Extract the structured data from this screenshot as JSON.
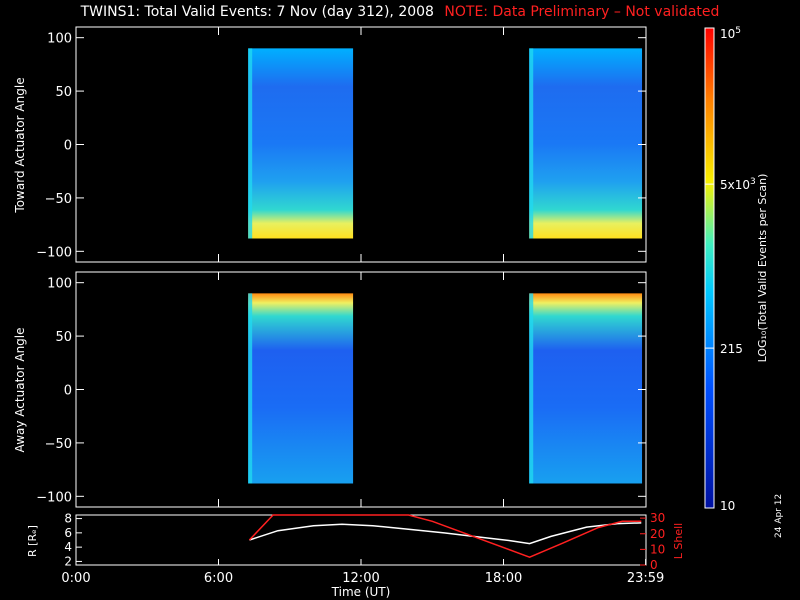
{
  "title": {
    "main": "TWINS1: Total Valid Events:  7 Nov (day 312), 2008",
    "note": "NOTE: Data Preliminary – Not validated"
  },
  "datestamp": "24 Apr 12",
  "colors": {
    "note": "#ff2020",
    "r_line": "#ffffff",
    "lshell_line": "#ff2020"
  },
  "chart_data": [
    {
      "type": "heatmap",
      "panel": "toward",
      "ylabel": "Toward Actuator Angle",
      "ylim": [
        -110,
        110
      ],
      "yticks": [
        100,
        50,
        0,
        -50,
        -100
      ],
      "xlim_hours": [
        0,
        24
      ],
      "data_blocks": [
        {
          "x_start": "07:15",
          "x_end": "11:40",
          "y_range": [
            -88,
            90
          ]
        },
        {
          "x_start": "19:05",
          "x_end": "23:50",
          "y_range": [
            -88,
            90
          ]
        }
      ]
    },
    {
      "type": "heatmap",
      "panel": "away",
      "ylabel": "Away Actuator Angle",
      "ylim": [
        -110,
        110
      ],
      "yticks": [
        100,
        50,
        0,
        -50,
        -100
      ],
      "xlim_hours": [
        0,
        24
      ],
      "data_blocks": [
        {
          "x_start": "07:15",
          "x_end": "11:40",
          "y_range": [
            -88,
            90
          ]
        },
        {
          "x_start": "19:05",
          "x_end": "23:50",
          "y_range": [
            -88,
            90
          ]
        }
      ]
    },
    {
      "type": "line",
      "panel": "orbit",
      "ylabel_left": "R [Rₑ]",
      "ylabel_right": "L Shell",
      "left_ticks": [
        "8",
        "6",
        "4",
        "2"
      ],
      "right_ticks": [
        "30",
        "20",
        "10",
        "0"
      ],
      "ylim_left": [
        1.5,
        8.5
      ],
      "ylim_right": [
        0,
        32
      ],
      "xlabel": "Time (UT)",
      "xticks": [
        "0:00",
        "6:00",
        "12:00",
        "18:00",
        "23:59"
      ],
      "series": [
        {
          "axis": "left",
          "x_hours": [
            7.3,
            8.5,
            10.0,
            11.2,
            12.5,
            14.0,
            15.5,
            17.0,
            18.3,
            19.1,
            20.0,
            21.5,
            22.8,
            23.8
          ],
          "values": [
            5.0,
            6.3,
            7.0,
            7.2,
            7.0,
            6.5,
            6.0,
            5.4,
            4.9,
            4.5,
            5.5,
            6.8,
            7.3,
            7.4
          ]
        },
        {
          "axis": "right",
          "x_hours": [
            7.3,
            8.3,
            14.0,
            15.0,
            19.1,
            20.5,
            22.0,
            23.0,
            23.8
          ],
          "values": [
            16,
            32,
            32,
            28,
            5,
            14,
            24,
            28,
            28
          ]
        }
      ]
    },
    {
      "type": "colorbar",
      "label": "LOG₁₀(Total Valid Events per Scan)",
      "ticks": [
        {
          "label": "10",
          "exp": "5",
          "value": 100000
        },
        {
          "label": "5x10",
          "exp": "3",
          "value": 5000
        },
        {
          "label": "215",
          "exp": "",
          "value": 215
        },
        {
          "label": "10",
          "exp": "",
          "value": 10
        }
      ],
      "range": [
        10,
        100000
      ]
    }
  ]
}
